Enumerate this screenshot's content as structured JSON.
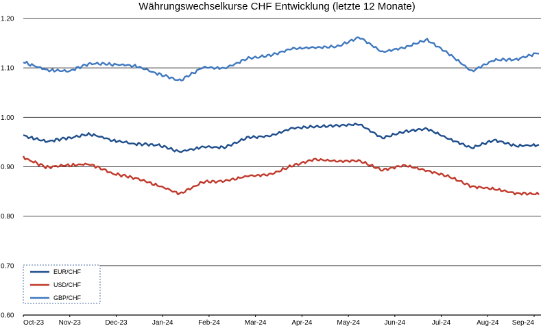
{
  "chart_data": {
    "type": "line",
    "title": "Währungswechselkurse CHF Entwicklung (letzte 12 Monate)",
    "xlabel": "",
    "ylabel": "",
    "ylim": [
      0.6,
      1.2
    ],
    "yticks": [
      "0.60",
      "0.70",
      "0.80",
      "0.90",
      "1.00",
      "1.10",
      "1.20"
    ],
    "x_tick_labels": [
      "Oct-23",
      "Nov-23",
      "Dec-23",
      "Jan-24",
      "Feb-24",
      "Mar-24",
      "Apr-24",
      "May-24",
      "Jun-24",
      "Jul-24",
      "Aug-24",
      "Sep-24"
    ],
    "grid": "horizontal",
    "legend_position": "bottom-left",
    "x": [
      "Oct-23",
      "Oct-23 (mid)",
      "Nov-23",
      "Nov-23 (mid)",
      "Dec-23",
      "Dec-23 (mid)",
      "Jan-24",
      "Jan-24 (mid)",
      "Feb-24",
      "Feb-24 (mid)",
      "Mar-24",
      "Mar-24 (mid)",
      "Apr-24",
      "Apr-24 (mid)",
      "May-24",
      "May-24 (mid)",
      "Jun-24",
      "Jun-24 (mid)",
      "Jul-24",
      "Jul-24 (mid)",
      "Aug-24",
      "Aug-24 (mid)",
      "Sep-24",
      "Sep-24 (end)"
    ],
    "series": [
      {
        "name": "EUR/CHF",
        "color": "#1f4e8c",
        "values": [
          0.963,
          0.951,
          0.958,
          0.966,
          0.953,
          0.946,
          0.944,
          0.93,
          0.94,
          0.939,
          0.959,
          0.962,
          0.978,
          0.981,
          0.983,
          0.986,
          0.958,
          0.971,
          0.977,
          0.956,
          0.938,
          0.954,
          0.942,
          0.944
        ]
      },
      {
        "name": "USD/CHF",
        "color": "#c0392b",
        "values": [
          0.919,
          0.899,
          0.903,
          0.905,
          0.886,
          0.877,
          0.862,
          0.845,
          0.869,
          0.871,
          0.881,
          0.884,
          0.902,
          0.915,
          0.911,
          0.912,
          0.893,
          0.903,
          0.892,
          0.88,
          0.86,
          0.855,
          0.846,
          0.845
        ]
      },
      {
        "name": "GBP/CHF",
        "color": "#3f78bf",
        "values": [
          1.112,
          1.096,
          1.093,
          1.109,
          1.107,
          1.104,
          1.088,
          1.074,
          1.101,
          1.099,
          1.119,
          1.125,
          1.139,
          1.141,
          1.143,
          1.162,
          1.132,
          1.141,
          1.157,
          1.128,
          1.093,
          1.116,
          1.117,
          1.131
        ]
      }
    ]
  }
}
